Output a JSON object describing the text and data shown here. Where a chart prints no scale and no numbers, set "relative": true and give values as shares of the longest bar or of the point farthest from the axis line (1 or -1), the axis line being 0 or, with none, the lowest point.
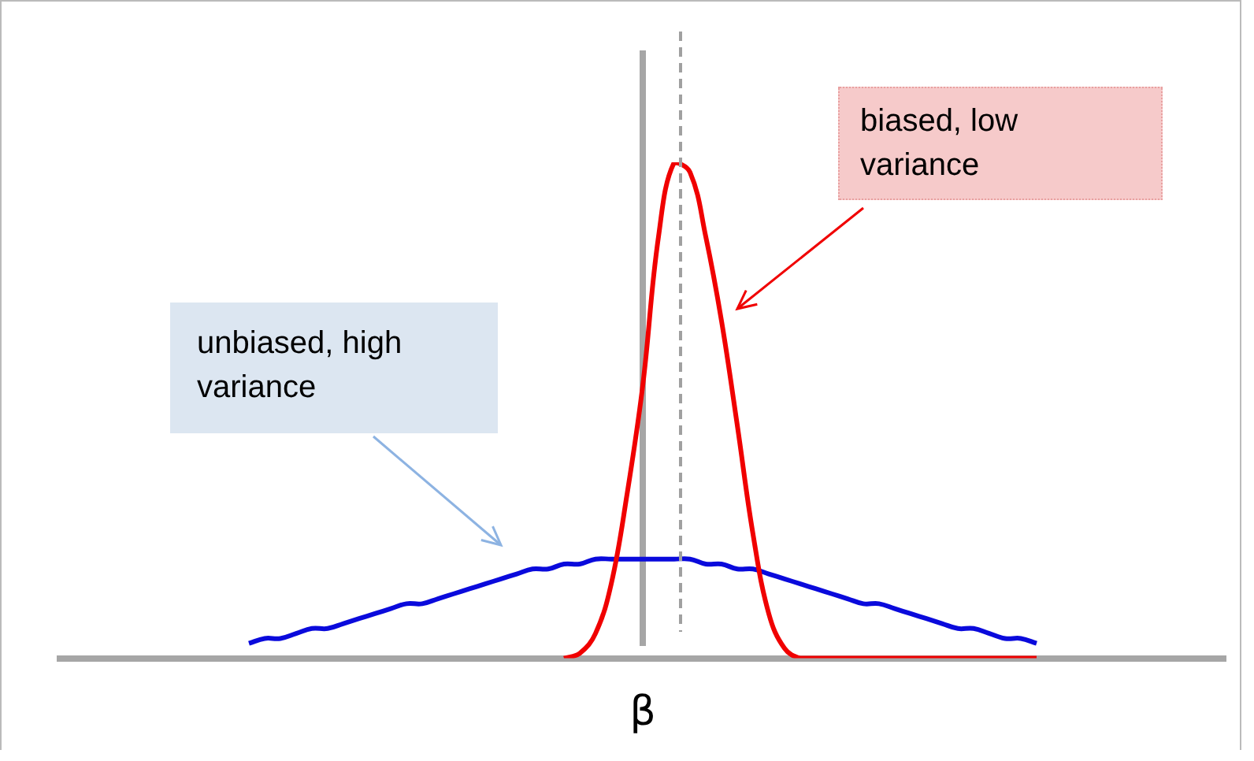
{
  "chart_data": {
    "type": "line",
    "relative": true,
    "xlabel": "β",
    "marker": "none",
    "line_style": "solid",
    "legend": false,
    "grid": false,
    "categories": [
      null,
      null,
      null,
      null,
      null,
      null,
      null,
      null,
      null,
      null,
      null,
      null,
      null,
      null,
      null,
      null,
      null,
      null,
      null,
      null,
      null,
      null,
      null,
      null,
      null,
      null,
      null,
      null,
      null,
      null,
      null,
      null,
      null,
      null,
      null,
      null,
      null,
      null,
      null,
      null,
      null,
      null,
      null,
      null,
      null,
      null,
      null,
      null,
      null,
      null,
      null,
      null,
      null,
      null,
      null,
      null,
      null,
      null,
      null,
      null,
      null,
      null,
      null,
      null,
      null,
      null,
      null,
      null,
      null,
      null,
      null,
      null,
      null,
      null,
      null
    ],
    "series": [
      {
        "color": "#0a0adc",
        "values": [
          null,
          null,
          null,
          null,
          null,
          null,
          null,
          null,
          null,
          null,
          null,
          null,
          0.03,
          0.04,
          0.04,
          0.05,
          0.06,
          0.06,
          0.07,
          0.08,
          0.09,
          0.1,
          0.11,
          0.11,
          0.12,
          0.13,
          0.14,
          0.15,
          0.16,
          0.17,
          0.18,
          0.18,
          0.19,
          0.19,
          0.2,
          0.2,
          0.2,
          0.2,
          0.2,
          0.2,
          0.2,
          0.19,
          0.19,
          0.18,
          0.18,
          0.17,
          0.16,
          0.15,
          0.14,
          0.13,
          0.12,
          0.11,
          0.11,
          0.1,
          0.09,
          0.08,
          0.07,
          0.06,
          0.06,
          0.05,
          0.04,
          0.04,
          0.03,
          null,
          null,
          null,
          null,
          null,
          null,
          null,
          null,
          null,
          null,
          null,
          null
        ]
      },
      {
        "color": "#f00000",
        "values": [
          null,
          null,
          null,
          null,
          null,
          null,
          null,
          null,
          null,
          null,
          null,
          null,
          null,
          null,
          null,
          null,
          null,
          null,
          null,
          null,
          null,
          null,
          null,
          null,
          null,
          null,
          null,
          null,
          null,
          null,
          null,
          null,
          0,
          0.01,
          0.05,
          0.15,
          0.33,
          0.55,
          0.85,
          1.0,
          0.98,
          0.85,
          0.68,
          0.47,
          0.25,
          0.09,
          0.02,
          0,
          0,
          0,
          0,
          0,
          0,
          0,
          0,
          0,
          0,
          0,
          0,
          0,
          0,
          0,
          0,
          null,
          null,
          null,
          null,
          null,
          null,
          null,
          null,
          null,
          null,
          null,
          null
        ]
      }
    ],
    "annotations": [
      "biased, low variance",
      "unbiased, high variance"
    ]
  }
}
